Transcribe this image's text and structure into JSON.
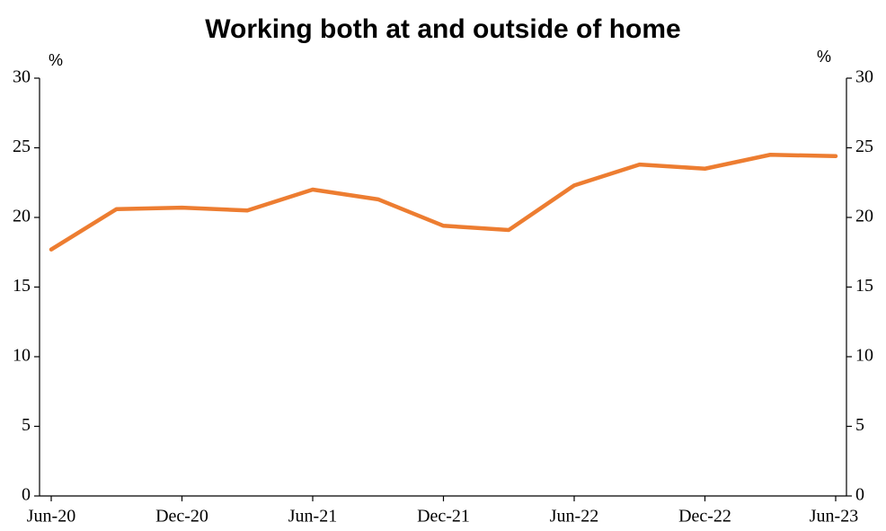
{
  "chart_data": {
    "type": "line",
    "title": "Working both at and outside of home",
    "y_unit": "%",
    "y2_unit": "%",
    "categories": [
      "Jun-20",
      null,
      "Dec-20",
      null,
      "Jun-21",
      null,
      "Dec-21",
      null,
      "Jun-22",
      null,
      "Dec-22",
      null,
      "Jun-23"
    ],
    "series": [
      {
        "color": "#ED7D31",
        "values": [
          17.7,
          20.6,
          20.7,
          20.5,
          22.0,
          21.3,
          19.4,
          19.1,
          22.3,
          23.8,
          23.5,
          24.5,
          24.4
        ]
      }
    ],
    "ylim": [
      0,
      30
    ],
    "yticks": [
      0,
      5,
      10,
      15,
      20,
      25,
      30
    ],
    "y2lim": [
      0,
      30
    ],
    "y2ticks": [
      0,
      5,
      10,
      15,
      20,
      25,
      30
    ]
  }
}
